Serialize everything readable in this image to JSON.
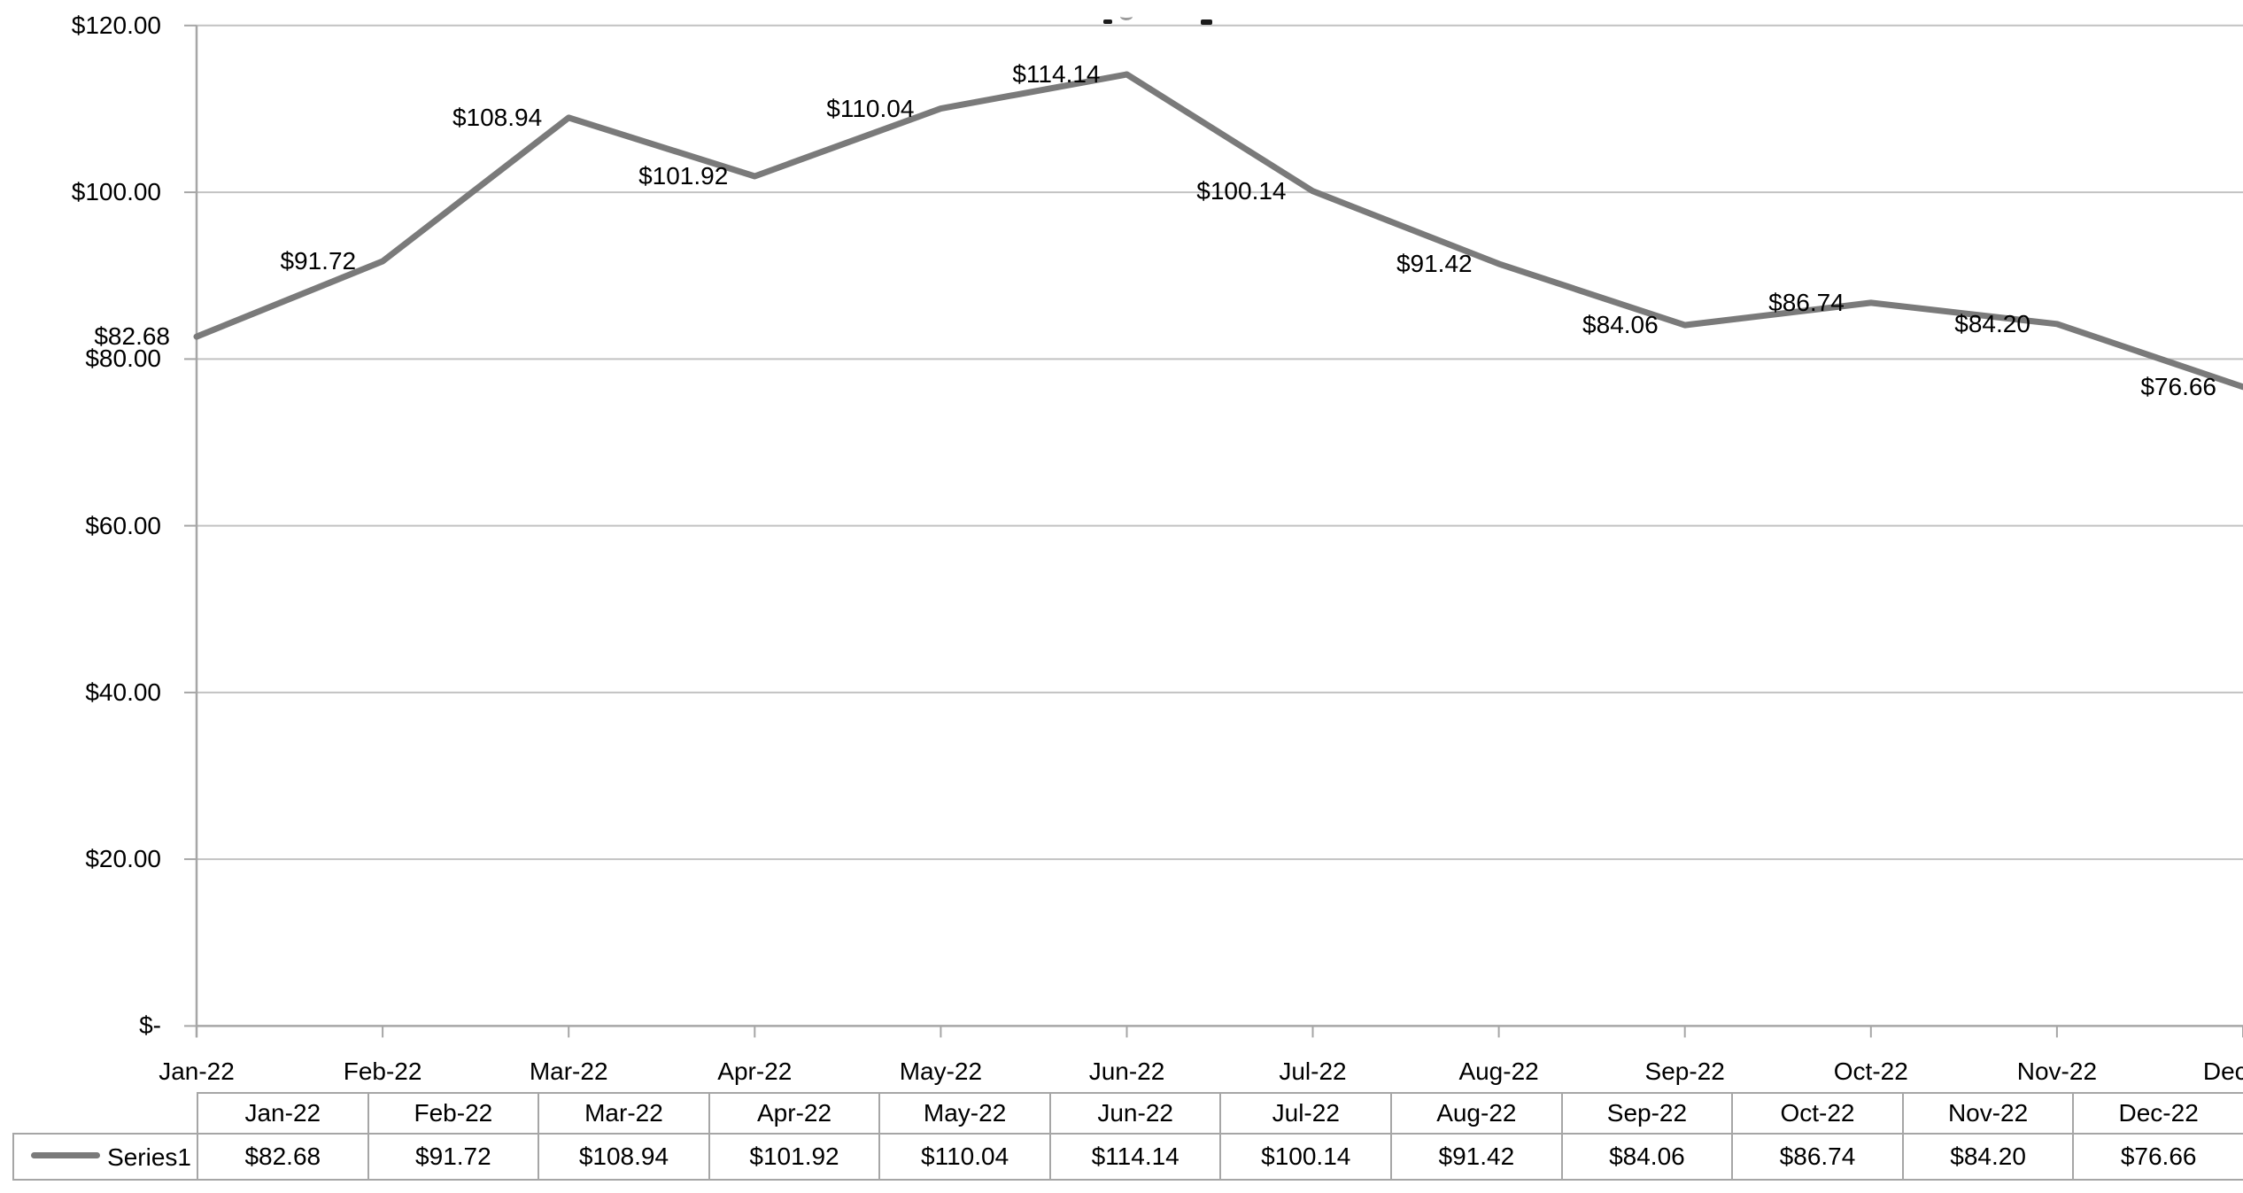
{
  "chart_data": {
    "type": "line",
    "title": "",
    "categories": [
      "Jan-22",
      "Feb-22",
      "Mar-22",
      "Apr-22",
      "May-22",
      "Jun-22",
      "Jul-22",
      "Aug-22",
      "Sep-22",
      "Oct-22",
      "Nov-22",
      "Dec-22"
    ],
    "series": [
      {
        "name": "Series1",
        "values": [
          82.68,
          91.72,
          108.94,
          101.92,
          110.04,
          114.14,
          100.14,
          91.42,
          84.06,
          86.74,
          84.2,
          76.66
        ],
        "value_labels": [
          "$82.68",
          "$91.72",
          "$108.94",
          "$101.92",
          "$110.04",
          "$114.14",
          "$100.14",
          "$91.42",
          "$84.06",
          "$86.74",
          "$84.20",
          "$76.66"
        ]
      }
    ],
    "xlabel": "",
    "ylabel": "",
    "ylim": [
      0,
      120
    ],
    "y_ticks": [
      {
        "value": 120,
        "label": "$120.00"
      },
      {
        "value": 100,
        "label": "$100.00"
      },
      {
        "value": 80,
        "label": "$80.00"
      },
      {
        "value": 60,
        "label": "$60.00"
      },
      {
        "value": 40,
        "label": "$40.00"
      },
      {
        "value": 20,
        "label": "$20.00"
      },
      {
        "value": 0,
        "label": "$-"
      }
    ],
    "grid": true,
    "data_labels_position": "left",
    "legend_position": "data-table",
    "colors": {
      "series_line": "#7a7a7a",
      "gridline": "#c2c2c2",
      "axis": "#a6a6a6",
      "table_border": "#a6a6a6",
      "label_text": "#000000"
    }
  }
}
